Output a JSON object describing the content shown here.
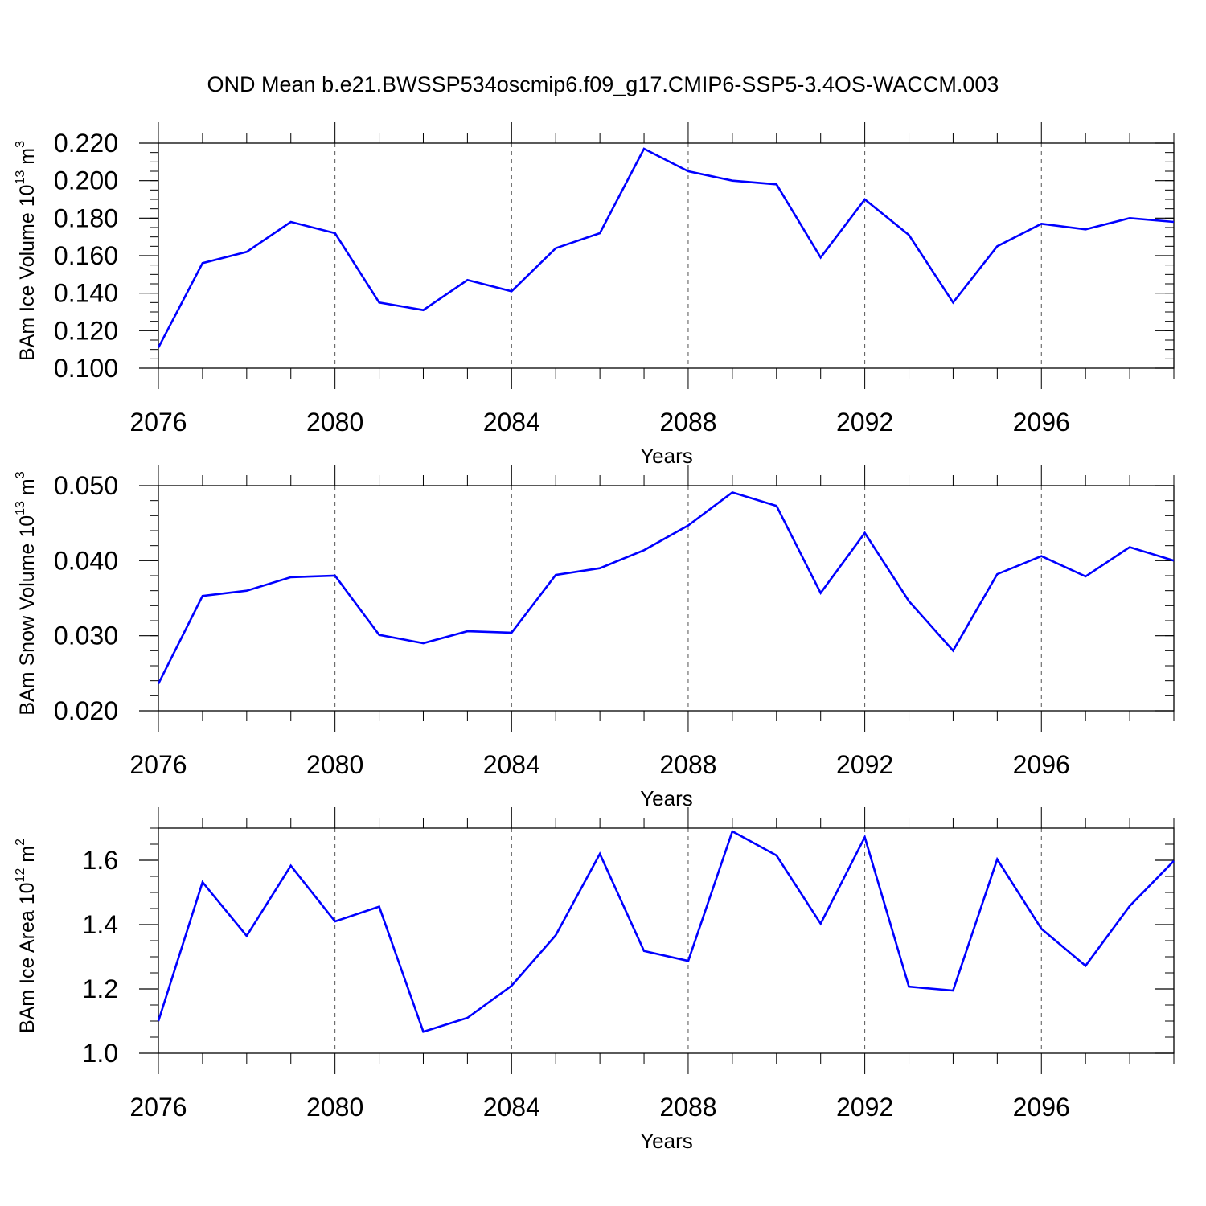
{
  "title": "OND Mean b.e21.BWSSP534oscmip6.f09_g17.CMIP6-SSP5-3.4OS-WACCM.003",
  "chart_data": [
    {
      "type": "line",
      "id": "ice-volume",
      "ylabel_main": "BAm Ice Volume 10",
      "ylabel_exp": "13",
      "ylabel_unit": " m",
      "ylabel_unit_exp": "3",
      "xlabel": "Years",
      "xlim": [
        2076,
        2099
      ],
      "ylim": [
        0.1,
        0.22
      ],
      "xticks": [
        2076,
        2080,
        2084,
        2088,
        2092,
        2096
      ],
      "xtick_labels": [
        "2076",
        "2080",
        "2084",
        "2088",
        "2092",
        "2096"
      ],
      "yticks": [
        0.1,
        0.12,
        0.14,
        0.16,
        0.18,
        0.2,
        0.22
      ],
      "ytick_labels": [
        "0.100",
        "0.120",
        "0.140",
        "0.160",
        "0.180",
        "0.200",
        "0.220"
      ],
      "yminor_step": 0.005,
      "x": [
        2076,
        2077,
        2078,
        2079,
        2080,
        2081,
        2082,
        2083,
        2084,
        2085,
        2086,
        2087,
        2088,
        2089,
        2090,
        2091,
        2092,
        2093,
        2094,
        2095,
        2096,
        2097,
        2098,
        2099
      ],
      "values": [
        0.111,
        0.156,
        0.162,
        0.178,
        0.172,
        0.135,
        0.131,
        0.147,
        0.141,
        0.164,
        0.172,
        0.217,
        0.205,
        0.2,
        0.198,
        0.159,
        0.19,
        0.171,
        0.135,
        0.165,
        0.177,
        0.174,
        0.18,
        0.178
      ],
      "color": "#0000ff"
    },
    {
      "type": "line",
      "id": "snow-volume",
      "ylabel_main": "BAm Snow Volume 10",
      "ylabel_exp": "13",
      "ylabel_unit": " m",
      "ylabel_unit_exp": "3",
      "xlabel": "Years",
      "xlim": [
        2076,
        2099
      ],
      "ylim": [
        0.02,
        0.05
      ],
      "xticks": [
        2076,
        2080,
        2084,
        2088,
        2092,
        2096
      ],
      "xtick_labels": [
        "2076",
        "2080",
        "2084",
        "2088",
        "2092",
        "2096"
      ],
      "yticks": [
        0.02,
        0.03,
        0.04,
        0.05
      ],
      "ytick_labels": [
        "0.020",
        "0.030",
        "0.040",
        "0.050"
      ],
      "yminor_step": 0.002,
      "x": [
        2076,
        2077,
        2078,
        2079,
        2080,
        2081,
        2082,
        2083,
        2084,
        2085,
        2086,
        2087,
        2088,
        2089,
        2090,
        2091,
        2092,
        2093,
        2094,
        2095,
        2096,
        2097,
        2098,
        2099
      ],
      "values": [
        0.0236,
        0.0353,
        0.036,
        0.0378,
        0.038,
        0.0301,
        0.029,
        0.0306,
        0.0304,
        0.0381,
        0.039,
        0.0414,
        0.0447,
        0.0491,
        0.0473,
        0.0357,
        0.0437,
        0.0346,
        0.028,
        0.0382,
        0.0406,
        0.0379,
        0.0418,
        0.04
      ],
      "color": "#0000ff"
    },
    {
      "type": "line",
      "id": "ice-area",
      "ylabel_main": "BAm Ice Area 10",
      "ylabel_exp": "12",
      "ylabel_unit": " m",
      "ylabel_unit_exp": "2",
      "xlabel": "Years",
      "xlim": [
        2076,
        2099
      ],
      "ylim": [
        1.0,
        1.7
      ],
      "xticks": [
        2076,
        2080,
        2084,
        2088,
        2092,
        2096
      ],
      "xtick_labels": [
        "2076",
        "2080",
        "2084",
        "2088",
        "2092",
        "2096"
      ],
      "yticks": [
        1.0,
        1.2,
        1.4,
        1.6
      ],
      "ytick_labels": [
        "1.0",
        "1.2",
        "1.4",
        "1.6"
      ],
      "yminor_step": 0.05,
      "x": [
        2076,
        2077,
        2078,
        2079,
        2080,
        2081,
        2082,
        2083,
        2084,
        2085,
        2086,
        2087,
        2088,
        2089,
        2090,
        2091,
        2092,
        2093,
        2094,
        2095,
        2096,
        2097,
        2098,
        2099
      ],
      "values": [
        1.1,
        1.532,
        1.365,
        1.583,
        1.41,
        1.456,
        1.067,
        1.11,
        1.21,
        1.367,
        1.62,
        1.318,
        1.287,
        1.69,
        1.615,
        1.403,
        1.672,
        1.207,
        1.195,
        1.603,
        1.387,
        1.272,
        1.458,
        1.598
      ],
      "color": "#0000ff"
    }
  ]
}
